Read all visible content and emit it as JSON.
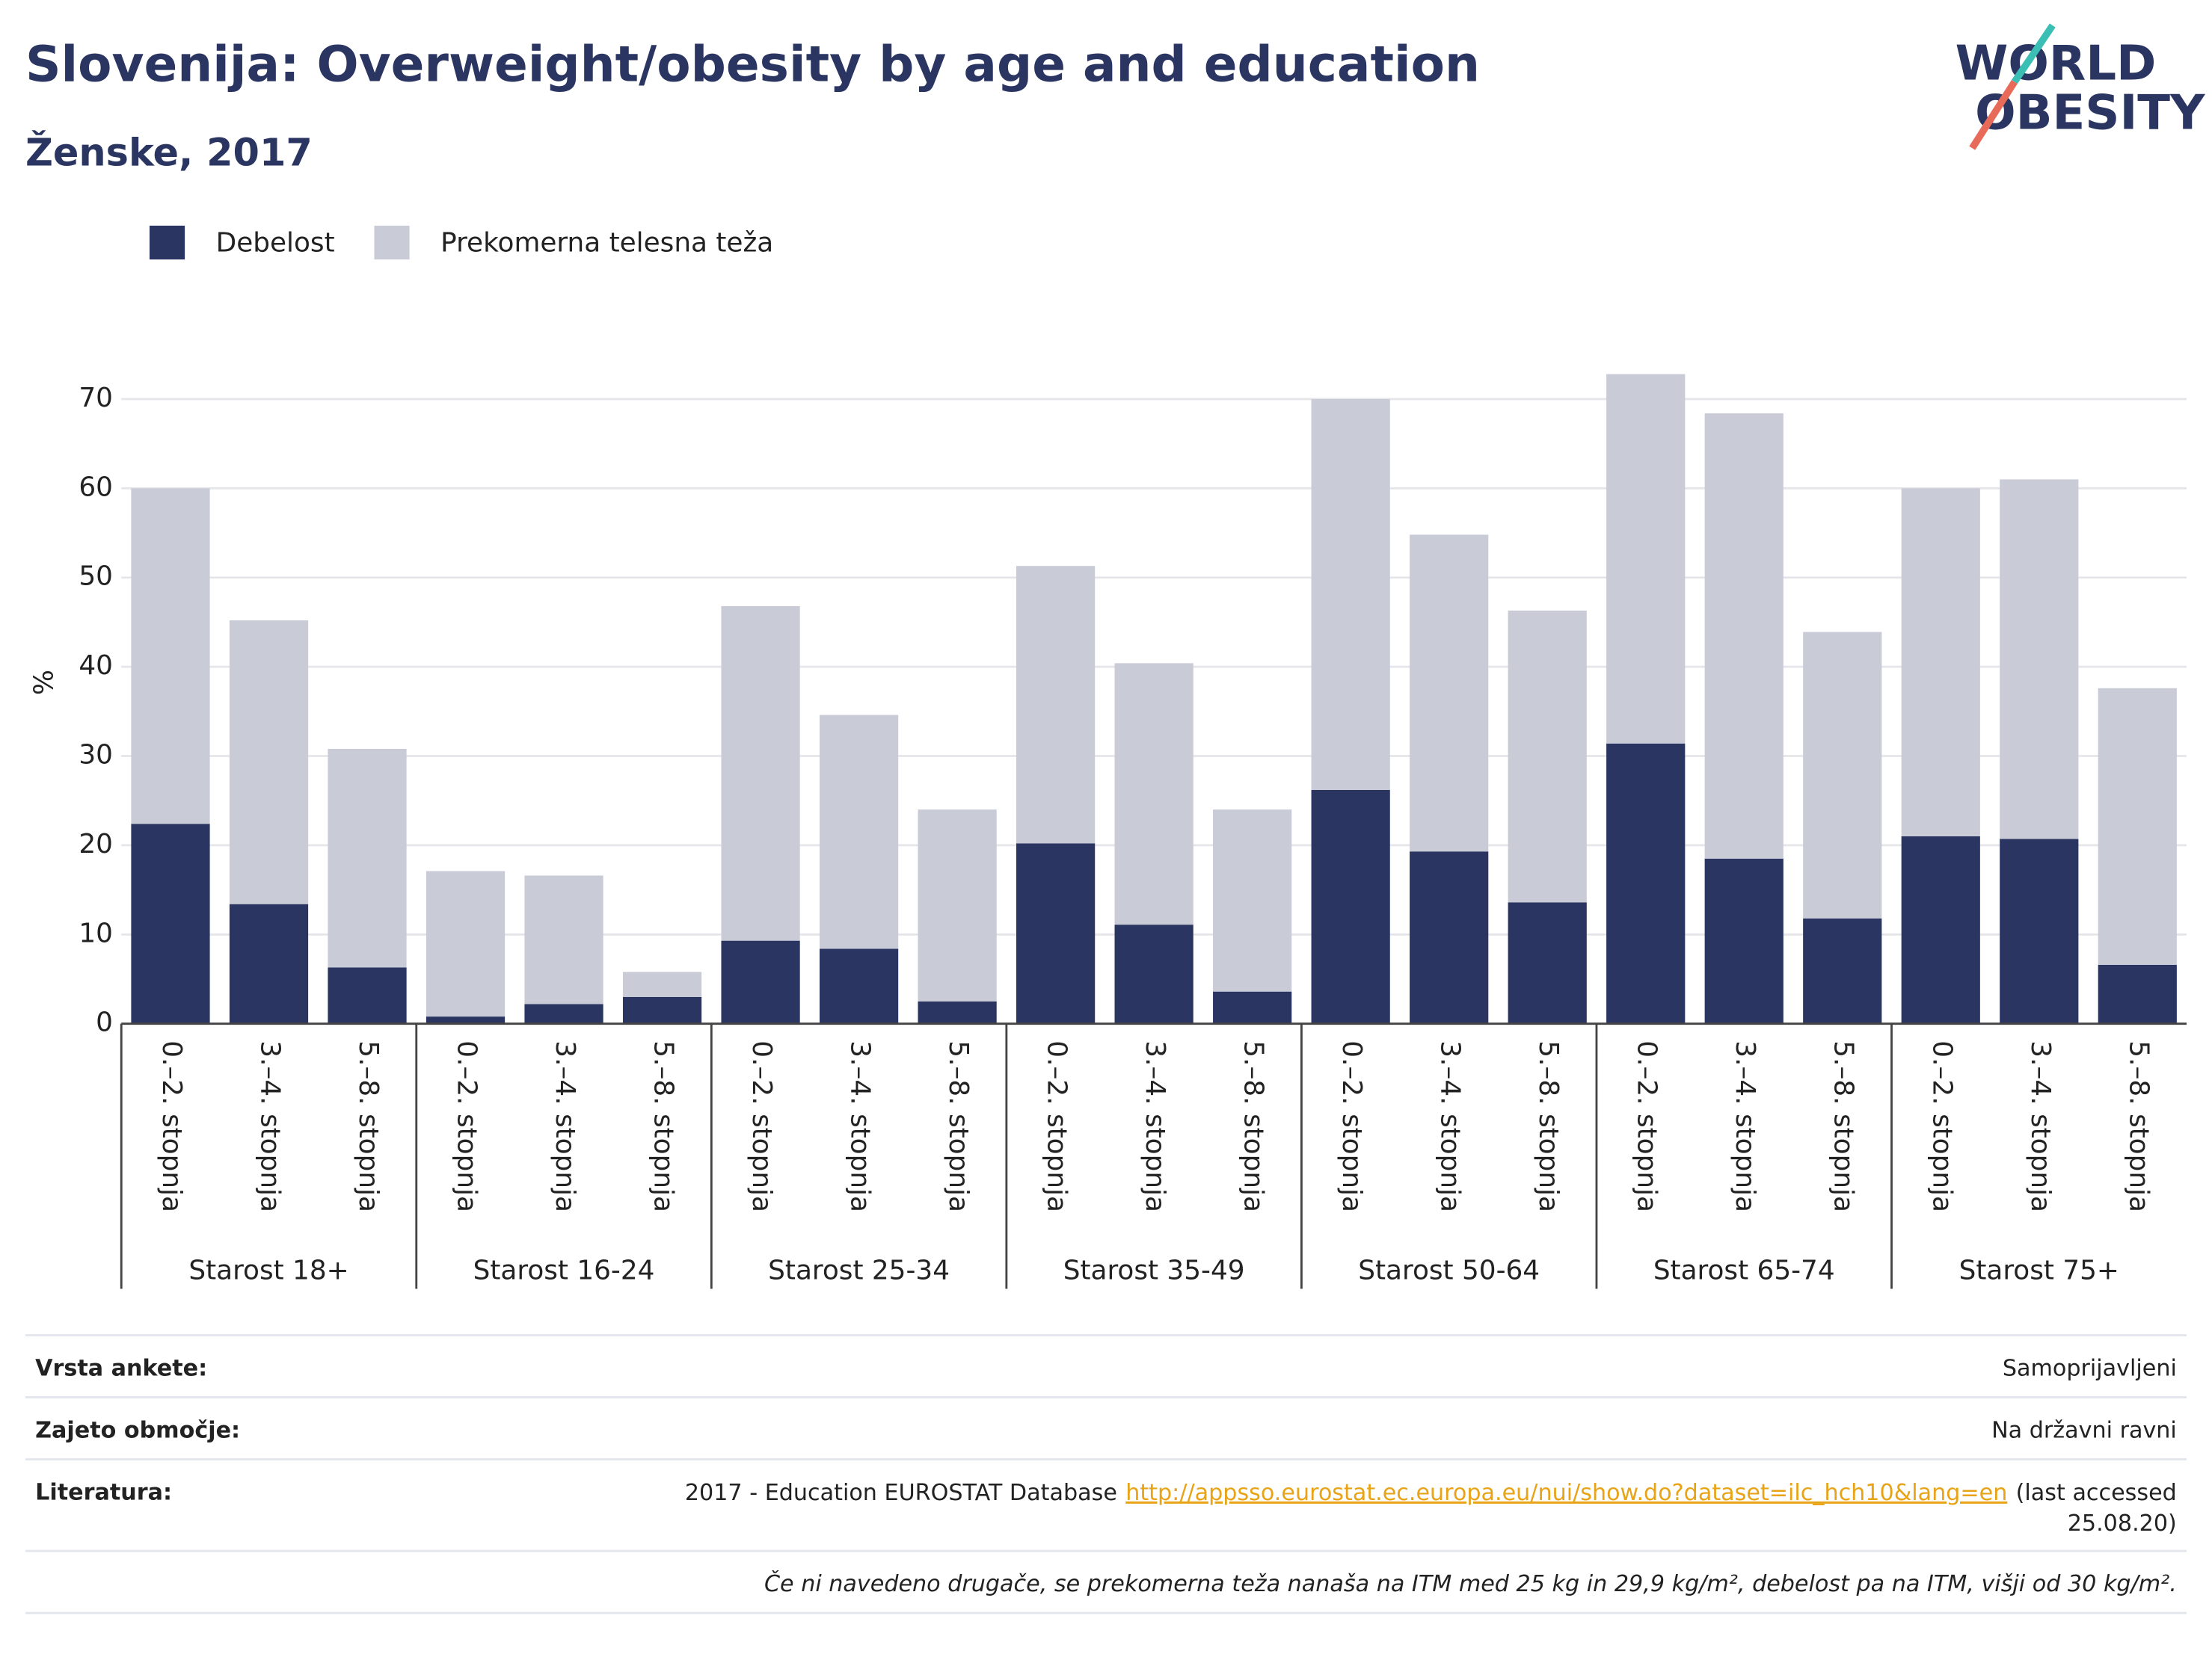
{
  "chart_data": {
    "type": "stacked_bar",
    "title": "Slovenija: Overweight/obesity by age and education",
    "subtitle": "Ženske, 2017",
    "logo": [
      "WORLD",
      "OBESITY"
    ],
    "y_label": "%",
    "groups": [
      "Starost 18+",
      "Starost 16-24",
      "Starost 25-34",
      "Starost 35-49",
      "Starost 50-64",
      "Starost 65-74",
      "Starost 75+"
    ],
    "categories": [
      "0.–2. stopnja",
      "3.–4. stopnja",
      "5.–8. stopnja",
      "0.–2. stopnja",
      "3.–4. stopnja",
      "5.–8. stopnja",
      "0.–2. stopnja",
      "3.–4. stopnja",
      "5.–8. stopnja",
      "0.–2. stopnja",
      "3.–4. stopnja",
      "5.–8. stopnja",
      "0.–2. stopnja",
      "3.–4. stopnja",
      "5.–8. stopnja",
      "0.–2. stopnja",
      "3.–4. stopnja",
      "5.–8. stopnja",
      "0.–2. stopnja",
      "3.–4. stopnja",
      "5.–8. stopnja"
    ],
    "series": [
      {
        "name": "Debelost",
        "color": "#2a3561",
        "values": [
          22.4,
          13.4,
          6.3,
          0.8,
          2.2,
          3.0,
          9.3,
          8.4,
          2.5,
          20.2,
          11.1,
          3.6,
          26.2,
          19.3,
          13.6,
          31.4,
          18.5,
          11.8,
          21.0,
          20.7,
          6.6
        ]
      },
      {
        "name": "Prekomerna telesna teža",
        "color": "#c9cbd7",
        "values": [
          37.6,
          31.8,
          24.5,
          16.3,
          14.4,
          2.8,
          37.5,
          26.2,
          21.5,
          31.1,
          29.3,
          20.4,
          43.8,
          35.5,
          32.7,
          41.4,
          49.9,
          32.1,
          39.0,
          40.3,
          31.0
        ]
      }
    ],
    "ylim": [
      0,
      70
    ],
    "yticks": [
      0,
      10,
      20,
      30,
      40,
      50,
      60,
      70
    ],
    "grid": true,
    "legend": "top-left"
  },
  "info_table": {
    "rows": [
      {
        "label": "Vrsta ankete:",
        "value": "Samoprijavljeni"
      },
      {
        "label": "Zajeto območje:",
        "value": "Na državni ravni"
      },
      {
        "label": "Literatura:",
        "value": "2017 - Education EUROSTAT Database",
        "link": "http://appsso.eurostat.ec.europa.eu/nui/show.do?dataset=ilc_hch10&lang=en",
        "after": [
          "(last accessed",
          "25.08.20)"
        ]
      }
    ],
    "footnote": "Če ni navedeno drugače, se prekomerna teža nanaša na ITM med 25 kg in 29,9 kg/m², debelost pa na ITM, višji od 30 kg/m²."
  }
}
